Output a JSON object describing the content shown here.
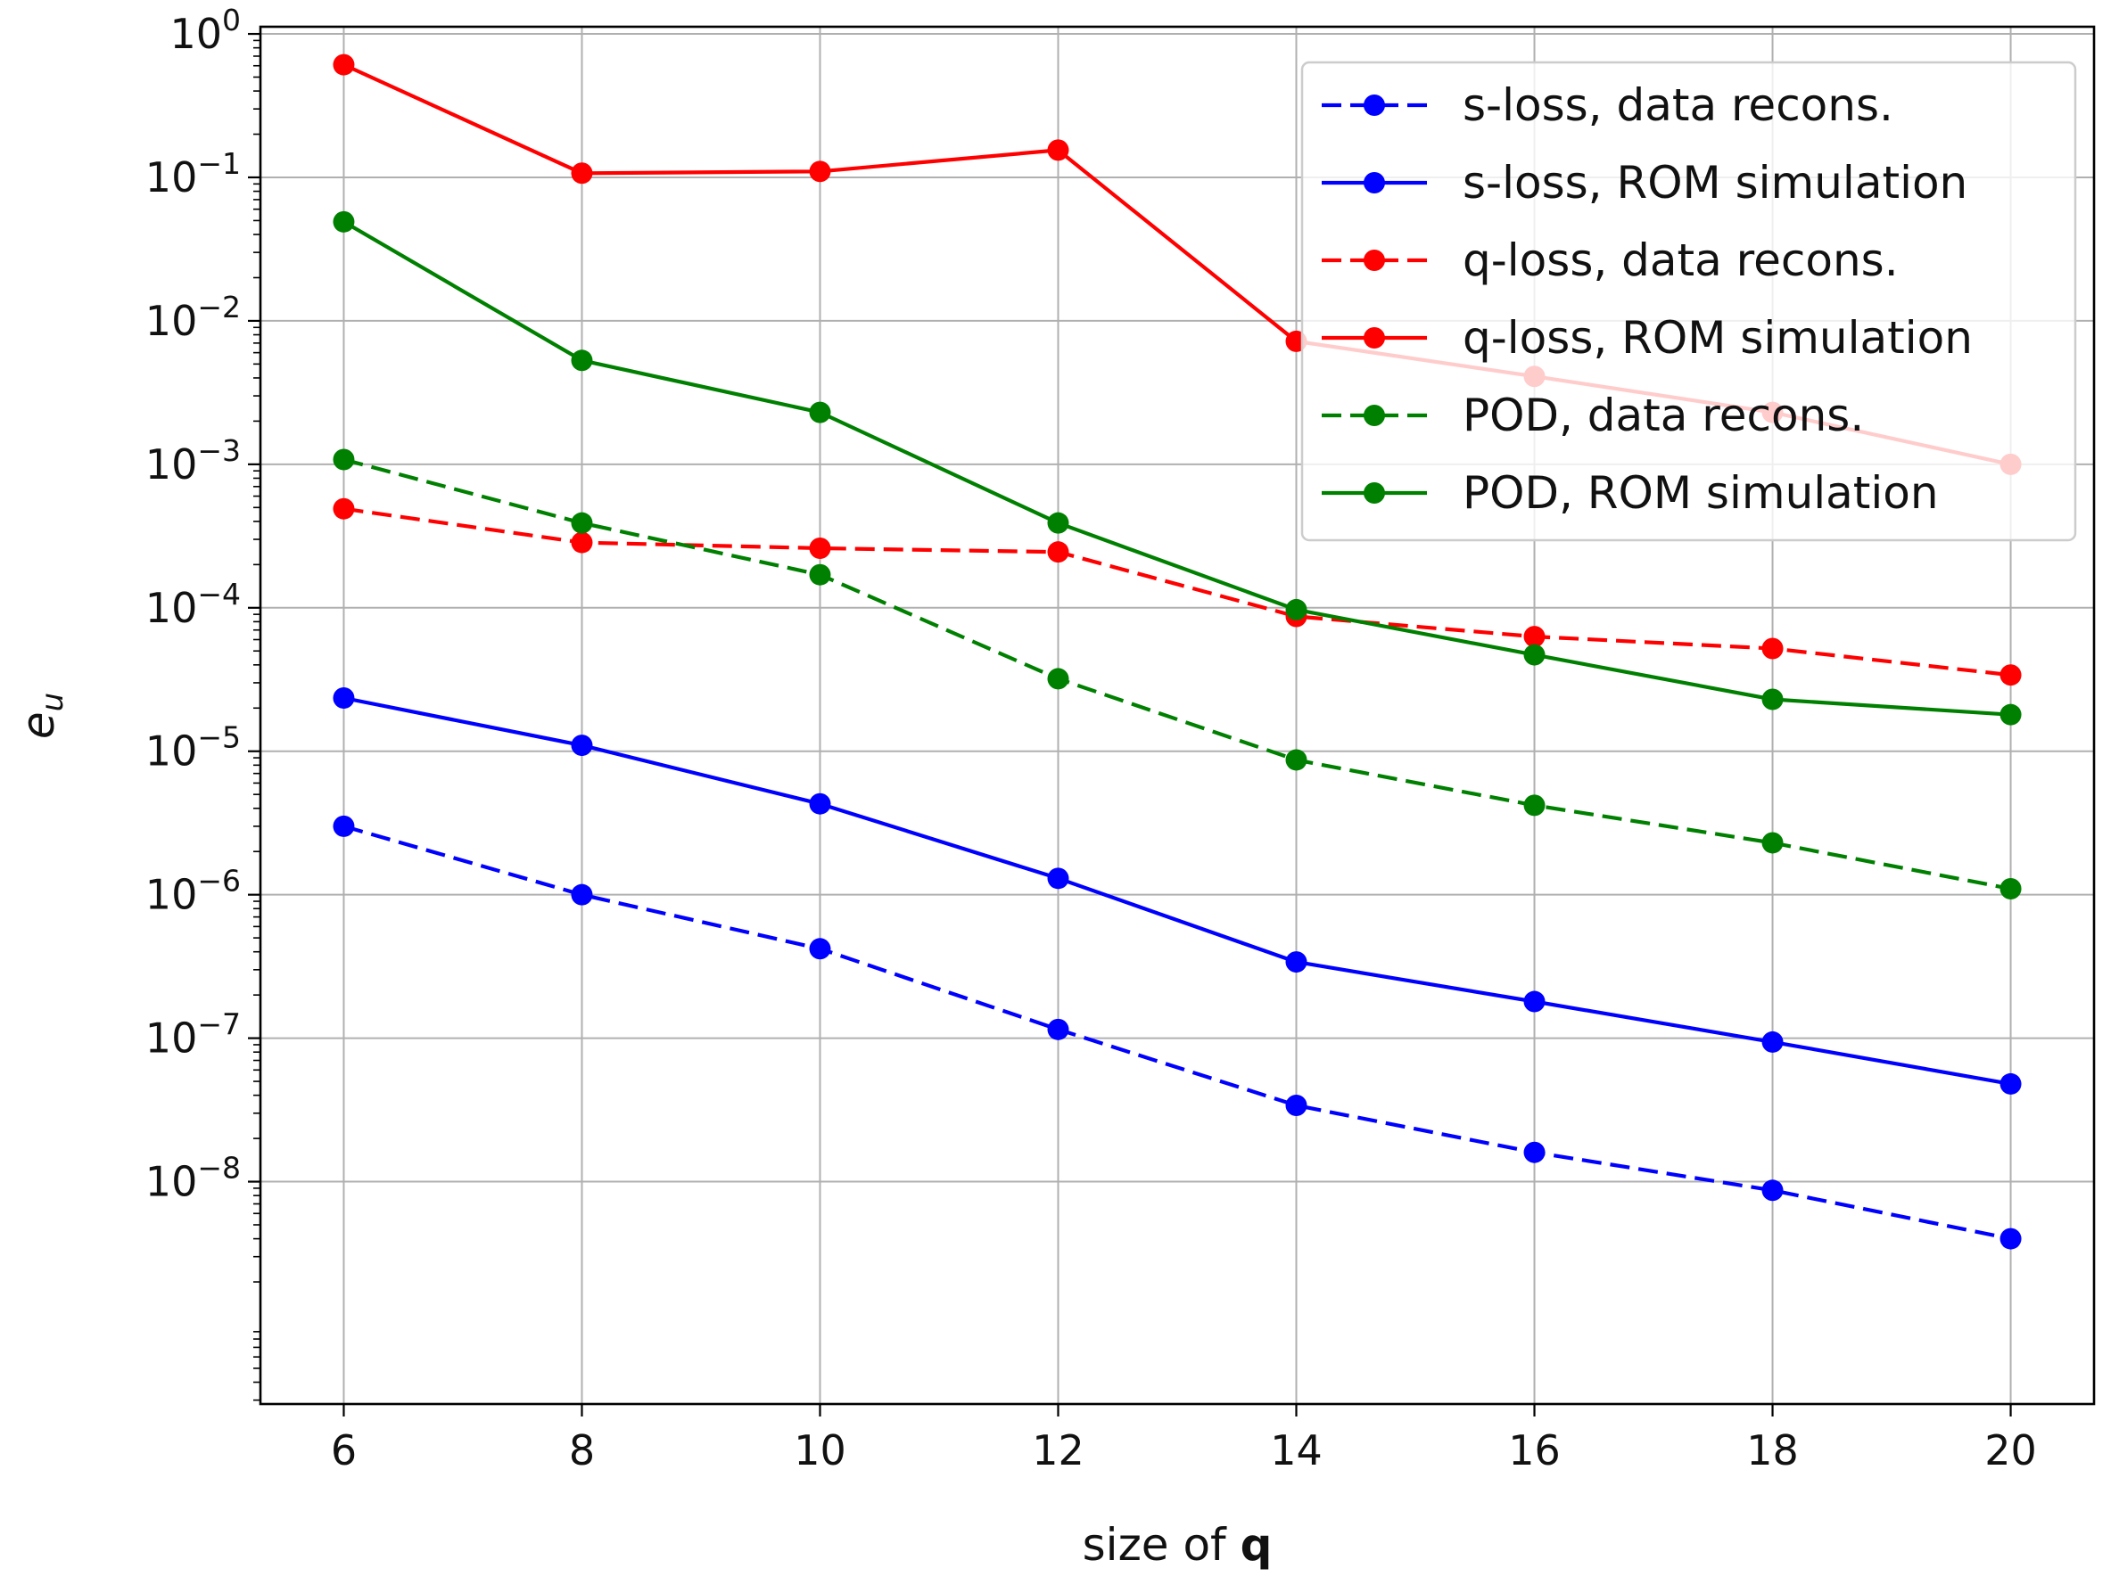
{
  "chart_data": {
    "type": "line",
    "yscale": "log",
    "xlabel_prefix": "size of ",
    "xlabel_bold": "q",
    "ylabel": "e_u",
    "ylabel_main": "e",
    "ylabel_sub": "u",
    "x": [
      6,
      8,
      10,
      12,
      14,
      16,
      18,
      20
    ],
    "xlim": [
      5.3,
      20.7
    ],
    "ylim_exp": [
      -9.55,
      0.05
    ],
    "xticks": [
      6,
      8,
      10,
      12,
      14,
      16,
      18,
      20
    ],
    "ytick_exponents": [
      0,
      -1,
      -2,
      -3,
      -4,
      -5,
      -6,
      -7,
      -8
    ],
    "ytick_base": "10",
    "grid": true,
    "legend_position": "top-right",
    "series": [
      {
        "name": "s-loss, data recons.",
        "color": "#0000ff",
        "style": "dashed",
        "values": [
          3e-06,
          1e-06,
          4.2e-07,
          1.15e-07,
          3.4e-08,
          1.6e-08,
          8.7e-09,
          4e-09
        ]
      },
      {
        "name": "s-loss, ROM simulation",
        "color": "#0000ff",
        "style": "solid",
        "values": [
          2.35e-05,
          1.1e-05,
          4.3e-06,
          1.3e-06,
          3.4e-07,
          1.8e-07,
          9.4e-08,
          4.8e-08
        ]
      },
      {
        "name": "q-loss, data recons.",
        "color": "#ff0000",
        "style": "dashed",
        "values": [
          0.00049,
          0.000285,
          0.00026,
          0.000245,
          8.7e-05,
          6.3e-05,
          5.2e-05,
          3.4e-05
        ]
      },
      {
        "name": "q-loss, ROM simulation",
        "color": "#ff0000",
        "style": "solid",
        "values": [
          0.61,
          0.107,
          0.11,
          0.155,
          0.0072,
          0.0041,
          0.0023,
          0.001
        ]
      },
      {
        "name": "POD, data recons.",
        "color": "#008000",
        "style": "dashed",
        "values": [
          0.00108,
          0.00039,
          0.00017,
          3.2e-05,
          8.7e-06,
          4.2e-06,
          2.3e-06,
          1.1e-06
        ]
      },
      {
        "name": "POD, ROM simulation",
        "color": "#008000",
        "style": "solid",
        "values": [
          0.049,
          0.0053,
          0.0023,
          0.00039,
          9.7e-05,
          4.7e-05,
          2.3e-05,
          1.8e-05
        ]
      }
    ]
  }
}
